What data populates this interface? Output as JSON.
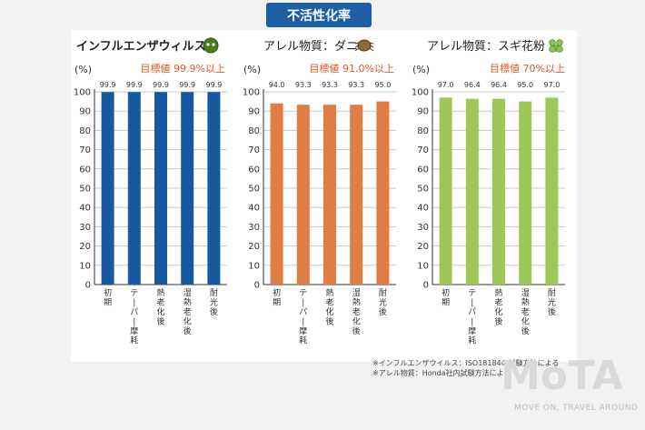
{
  "page_title": "不活性化率",
  "colors": {
    "influenza": "#1559a0",
    "dust_mite": "#e07d45",
    "cedar": "#9ec757",
    "target": "#e05a1e",
    "title_badge": "#1d5ea5"
  },
  "chart_data": [
    {
      "type": "bar",
      "title": "インフルエンザウィルス",
      "target": "目標値 99.9%以上",
      "ylabel": "(%)",
      "ylim": [
        0,
        100
      ],
      "yticks": [
        0,
        10,
        20,
        30,
        40,
        50,
        60,
        70,
        80,
        90,
        100
      ],
      "categories": [
        "初期",
        "テーパー摩耗",
        "熱老化後",
        "湿熱老化後",
        "耐光後"
      ],
      "values": [
        99.9,
        99.9,
        99.9,
        99.9,
        99.9
      ],
      "value_labels": [
        "99.9",
        "99.9",
        "99.9",
        "99.9",
        "99.9"
      ],
      "color": "#1559a0",
      "icon": "virus-icon",
      "grid": true
    },
    {
      "type": "bar",
      "title": "アレル物質：ダニ",
      "target": "目標値 91.0%以上",
      "ylabel": "(%)",
      "ylim": [
        0,
        100
      ],
      "yticks": [
        0,
        10,
        20,
        30,
        40,
        50,
        60,
        70,
        80,
        90,
        100
      ],
      "categories": [
        "初期",
        "テーパー摩耗",
        "熱老化後",
        "湿熱老化後",
        "耐光後"
      ],
      "values": [
        94.0,
        93.3,
        93.3,
        93.3,
        95.0
      ],
      "value_labels": [
        "94.0",
        "93.3",
        "93.3",
        "93.3",
        "95.0"
      ],
      "color": "#e07d45",
      "icon": "dust-mite-icon",
      "grid": true
    },
    {
      "type": "bar",
      "title": "アレル物質：スギ花粉",
      "target": "目標値 70%以上",
      "ylabel": "(%)",
      "ylim": [
        0,
        100
      ],
      "yticks": [
        0,
        10,
        20,
        30,
        40,
        50,
        60,
        70,
        80,
        90,
        100
      ],
      "categories": [
        "初期",
        "テーパー摩耗",
        "熱老化後",
        "湿熱老化後",
        "耐光後"
      ],
      "values": [
        97.0,
        96.4,
        96.4,
        95.0,
        97.0
      ],
      "value_labels": [
        "97.0",
        "96.4",
        "96.4",
        "95.0",
        "97.0"
      ],
      "color": "#9ec757",
      "icon": "pollen-icon",
      "grid": true
    }
  ],
  "notes": [
    "※インフルエンザウイルス：ISO18184の試験方法による",
    "※アレル物質：Honda社内試験方法による"
  ],
  "logo": {
    "name": "MoTA",
    "tagline": "MOVE ON, TRAVEL AROUND"
  }
}
